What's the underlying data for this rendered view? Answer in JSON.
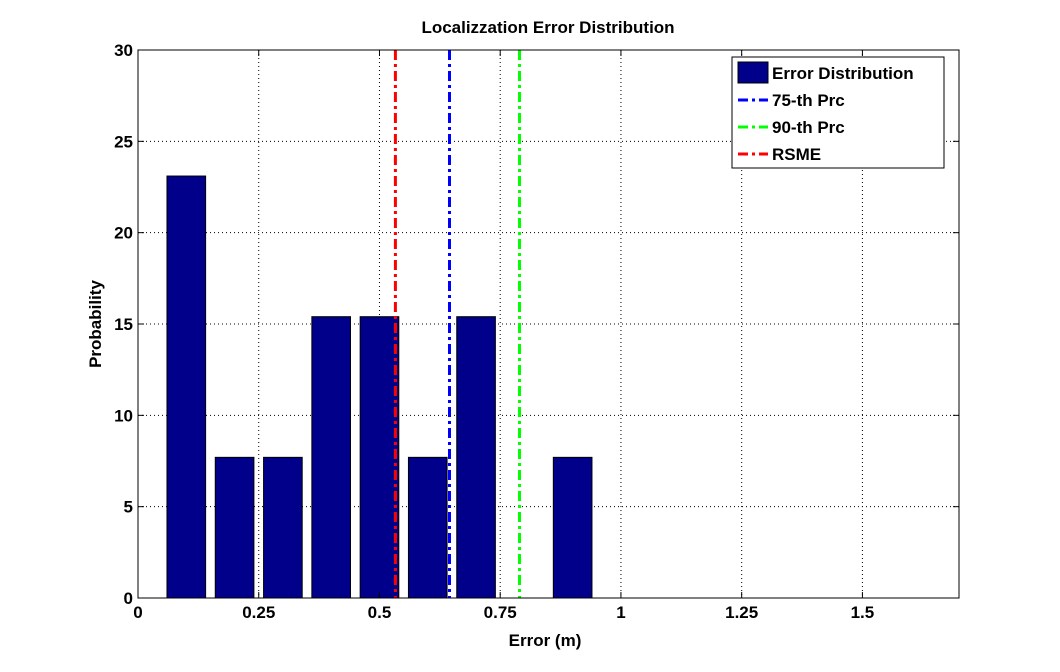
{
  "chart_data": {
    "type": "bar",
    "title": "Localizzation Error Distribution",
    "xlabel": "Error (m)",
    "ylabel": "Probability",
    "xlim": [
      0,
      1.7
    ],
    "ylim": [
      0,
      30
    ],
    "x_ticks": [
      0,
      0.25,
      0.5,
      0.75,
      1,
      1.25,
      1.5
    ],
    "x_tick_labels": [
      "0",
      "0.25",
      "0.5",
      "0.75",
      "1",
      "1.25",
      "1.5"
    ],
    "y_ticks": [
      0,
      5,
      10,
      15,
      20,
      25,
      30
    ],
    "y_tick_labels": [
      "0",
      "5",
      "10",
      "15",
      "20",
      "25",
      "30"
    ],
    "grid": true,
    "bar_width": 0.08,
    "series": [
      {
        "name": "Error Distribution",
        "color": "#00008b",
        "x": [
          0.1,
          0.2,
          0.3,
          0.4,
          0.5,
          0.6,
          0.7,
          0.9
        ],
        "values": [
          23.1,
          7.7,
          7.7,
          15.4,
          15.4,
          7.7,
          15.4,
          7.7
        ]
      }
    ],
    "reference_lines": [
      {
        "name": "75-th Prc",
        "x": 0.645,
        "color": "#0000ff"
      },
      {
        "name": "90-th Prc",
        "x": 0.79,
        "color": "#00ff00"
      },
      {
        "name": "RSME",
        "x": 0.533,
        "color": "#ff0000"
      }
    ],
    "legend": {
      "position": "top-right",
      "entries": [
        "Error Distribution",
        "75-th Prc",
        "90-th Prc",
        "RSME"
      ]
    }
  }
}
